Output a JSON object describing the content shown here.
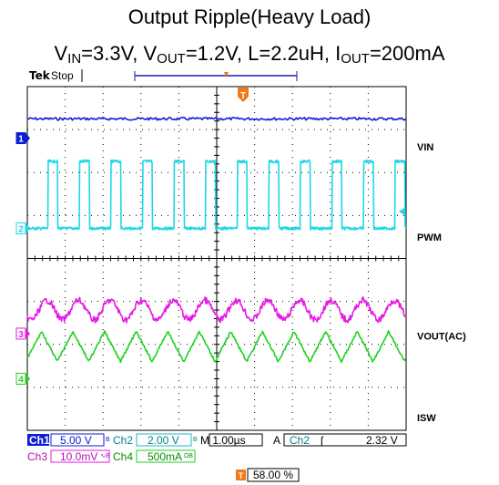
{
  "title": {
    "line1": "Output Ripple(Heavy Load)",
    "parts": [
      {
        "key": "vin_label",
        "text": "V",
        "sub": "IN"
      },
      {
        "key": "vin_value",
        "text": "=3.3V, V",
        "sub": "OUT"
      },
      {
        "key": "vout_value",
        "text": "=1.2V, L=2.2uH, I",
        "sub": "OUT"
      },
      {
        "key": "iout_value",
        "text": "=200mA",
        "sub": ""
      }
    ]
  },
  "scope": {
    "brand": "Tek",
    "state": "Stop",
    "trigger_marker": "T"
  },
  "colors": {
    "ch1": "#0b1fd4",
    "ch2": "#1fd7e6",
    "ch3": "#e619e6",
    "ch4": "#1fd21f",
    "trigger": "#f07a1a",
    "grid": "#000000"
  },
  "chart_data": {
    "type": "line",
    "title": "Output Ripple(Heavy Load)",
    "subtitle": "VIN=3.3V, VOUT=1.2V, L=2.2uH, IOUT=200mA",
    "grid": true,
    "x_divisions": 10,
    "y_divisions": 8,
    "time_per_div": "1.00µs",
    "switching_periods_on_screen": 12,
    "series": [
      {
        "name": "VIN",
        "channel": "1",
        "marker": "1",
        "scale": "5.00 V",
        "shape": "dc",
        "level_div": 7.25
      },
      {
        "name": "PWM",
        "channel": "2",
        "marker": "2",
        "scale": "2.00 V",
        "shape": "square",
        "low_div": 4.7,
        "high_div": 6.3,
        "duty": 0.58
      },
      {
        "name": "VOUT(AC)",
        "channel": "3",
        "marker": "3",
        "scale": "10.0mV",
        "shape": "ripple",
        "center_div": 2.8,
        "pp_div": 0.45
      },
      {
        "name": "ISW",
        "channel": "4",
        "marker": "4",
        "scale": "500mA",
        "shape": "triangle",
        "low_div": 1.6,
        "high_div": 2.3
      }
    ]
  },
  "readout": {
    "ch1_label": "Ch1",
    "ch1_value": "5.00 V",
    "ch2_label": "Ch2",
    "ch2_value": "2.00 V",
    "time": "M 1.00µs",
    "trig_mode": "A",
    "trig_ch": "Ch2",
    "trig_slope": "ʃ",
    "trig_level": "2.32 V",
    "ch3_label": "Ch3",
    "ch3_value": "10.0mV",
    "ch4_label": "Ch4",
    "ch4_value": "500mA",
    "trigger_position": "58.00 %"
  }
}
